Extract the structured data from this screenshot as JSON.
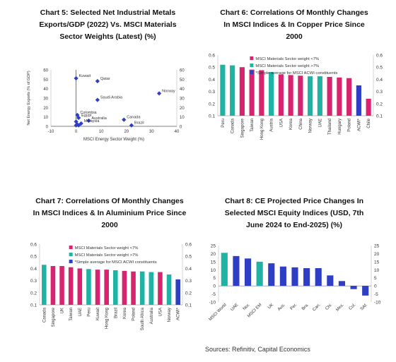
{
  "source": "Sources: Refinitiv, Capital Economics",
  "chart_data": [
    {
      "id": "chart5",
      "type": "scatter",
      "title_lines": [
        "Chart 5: Selected Net Industrial Metals",
        "Exports/GDP (2022) Vs. MSCI Materials",
        "Sector Weights (Latest) (%)"
      ],
      "xlabel": "MSCI Energy Sector Weight (%)",
      "ylabel": "Net Energy Exports (% of GDP)",
      "xlim": [
        -10,
        40
      ],
      "ylim": [
        0,
        60
      ],
      "xticks": [
        -10,
        0,
        10,
        20,
        30,
        40
      ],
      "yticks": [
        0,
        10,
        20,
        30,
        40,
        50,
        60
      ],
      "y2ticks": [
        0,
        10,
        20,
        30,
        40,
        50,
        60
      ],
      "color": "#2f3fc5",
      "points": [
        {
          "label": "Kuwait",
          "x": 0,
          "y": 51
        },
        {
          "label": "Qatar",
          "x": 8.5,
          "y": 48
        },
        {
          "label": "Norway",
          "x": 33,
          "y": 35
        },
        {
          "label": "Saudi Arabia",
          "x": 8.5,
          "y": 28
        },
        {
          "label": "Colombia",
          "x": 0.5,
          "y": 12
        },
        {
          "label": "Egypt",
          "x": 1,
          "y": 9
        },
        {
          "label": "Australia",
          "x": 5,
          "y": 6
        },
        {
          "label": "Canada",
          "x": 19,
          "y": 7
        },
        {
          "label": "Malaysia",
          "x": 2,
          "y": 3
        },
        {
          "label": "Brazil",
          "x": 22,
          "y": 1
        },
        {
          "label": "",
          "x": 0,
          "y": 1
        },
        {
          "label": "",
          "x": 0.5,
          "y": 2
        },
        {
          "label": "",
          "x": 0,
          "y": 5
        },
        {
          "label": "",
          "x": 1,
          "y": 1
        }
      ]
    },
    {
      "id": "chart6",
      "type": "bar",
      "title_lines": [
        "Chart 6: Correlations Of Monthly Changes",
        "In MSCI Indices & In Copper Price Since",
        "2000"
      ],
      "categories": [
        "Peru",
        "Canada",
        "Singapore",
        "Taiwan",
        "Hong Kong",
        "Austria",
        "USA",
        "Korea",
        "China",
        "Norway",
        "UAE",
        "Thailand",
        "Hungary",
        "Poland",
        "ACWI*",
        "Chile"
      ],
      "values": [
        0.52,
        0.515,
        0.5,
        0.48,
        0.475,
        0.46,
        0.44,
        0.435,
        0.43,
        0.425,
        0.425,
        0.42,
        0.415,
        0.41,
        0.35,
        0.24
      ],
      "groups": [
        "gt7",
        "gt7",
        "lt7",
        "lt7",
        "lt7",
        "gt7",
        "lt7",
        "lt7",
        "lt7",
        "gt7",
        "gt7",
        "lt7",
        "lt7",
        "lt7",
        "acwi",
        "lt7"
      ],
      "ylim": [
        0.1,
        0.6
      ],
      "yticks": [
        0.1,
        0.2,
        0.3,
        0.4,
        0.5,
        0.6
      ],
      "legend": [
        {
          "key": "lt7",
          "label": "MSCI Materials Sector weight <7%",
          "color": "#d6246e"
        },
        {
          "key": "gt7",
          "label": "MSCI Materials Sector weight >7%",
          "color": "#1fb3a6"
        },
        {
          "key": "acwi",
          "label": "*Simple average for MSCI ACWI constituents",
          "color": "#2f3fc5"
        }
      ]
    },
    {
      "id": "chart7",
      "type": "bar",
      "title_lines": [
        "Chart 7: Correlations Of Monthly Changes",
        "In MSCI Indices & In Aluminium Price Since",
        "2000"
      ],
      "categories": [
        "Canada",
        "Singapore",
        "UK",
        "Taiwan",
        "UAE",
        "Peru",
        "Kuwait",
        "Hong Kong",
        "Brazil",
        "Korea",
        "Poland",
        "South Africa",
        "Australia",
        "USA",
        "Norway",
        "ACWI*"
      ],
      "values": [
        0.43,
        0.42,
        0.42,
        0.41,
        0.4,
        0.395,
        0.39,
        0.39,
        0.385,
        0.38,
        0.375,
        0.375,
        0.37,
        0.37,
        0.35,
        0.31
      ],
      "groups": [
        "gt7",
        "lt7",
        "lt7",
        "lt7",
        "lt7",
        "gt7",
        "lt7",
        "lt7",
        "gt7",
        "lt7",
        "lt7",
        "gt7",
        "gt7",
        "lt7",
        "gt7",
        "acwi"
      ],
      "ylim": [
        0.1,
        0.6
      ],
      "yticks": [
        0.1,
        0.2,
        0.3,
        0.4,
        0.5,
        0.6
      ],
      "legend": [
        {
          "key": "lt7",
          "label": "MSCI Materials Sector weight <7%",
          "color": "#d6246e"
        },
        {
          "key": "gt7",
          "label": "MSCI Materials Sector weight >7%",
          "color": "#1fb3a6"
        },
        {
          "key": "acwi",
          "label": "*Simple average for MSCI ACWI constituents",
          "color": "#2f3fc5"
        }
      ]
    },
    {
      "id": "chart8",
      "type": "bar",
      "title_lines": [
        "Chart 8: CE Projected Price Changes In",
        "Selected MSCI Equity Indices (USD, 7th",
        "June 2024 to End-2025) (%)"
      ],
      "categories": [
        "MSCI World",
        "UAE",
        "Nor.",
        "MSCI EM",
        "UK",
        "Aus.",
        "Per.",
        "Bra.",
        "Can.",
        "Chi.",
        "Mex.",
        "Col.",
        "SAf."
      ],
      "values": [
        20.5,
        18.5,
        17,
        15,
        14,
        12,
        11.5,
        11,
        11,
        6.5,
        3,
        -2,
        -6
      ],
      "groups": [
        "world",
        "blue",
        "blue",
        "world",
        "blue",
        "blue",
        "blue",
        "blue",
        "blue",
        "blue",
        "blue",
        "blue",
        "blue"
      ],
      "ylim": [
        -10,
        25
      ],
      "yticks": [
        -10,
        -5,
        0,
        5,
        10,
        15,
        20,
        25
      ],
      "colors": {
        "world": "#1fb3a6",
        "blue": "#2f3fc5"
      }
    }
  ]
}
